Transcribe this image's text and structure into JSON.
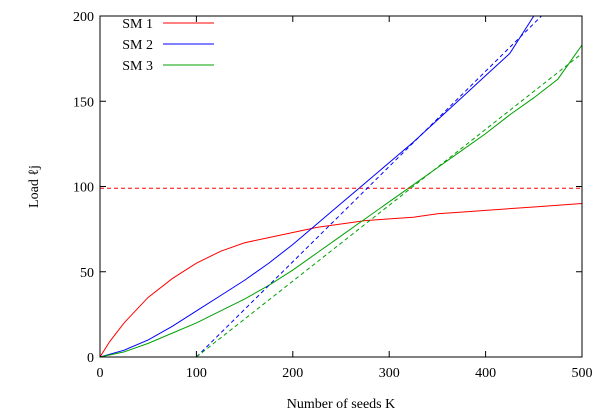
{
  "chart_data": {
    "type": "line",
    "xlabel": "Number of seeds K",
    "ylabel": "Load ℓj",
    "xlim": [
      0,
      500
    ],
    "ylim": [
      0,
      200
    ],
    "xticks": [
      0,
      100,
      200,
      300,
      400,
      500
    ],
    "yticks": [
      0,
      50,
      100,
      150,
      200
    ],
    "grid": false,
    "legend_position": "top-left",
    "series": [
      {
        "name": "SM 1",
        "color": "#ff0000",
        "style": "solid",
        "x": [
          0,
          10,
          25,
          50,
          75,
          100,
          125,
          150,
          175,
          200,
          225,
          250,
          275,
          300,
          325,
          350,
          375,
          400,
          425,
          450,
          475,
          500
        ],
        "y": [
          0,
          9,
          20,
          35,
          46,
          55,
          62,
          67,
          70,
          73,
          76,
          78,
          80,
          81,
          82,
          84,
          85,
          86,
          87,
          88,
          89,
          90
        ]
      },
      {
        "name": "SM 2",
        "color": "#0000ff",
        "style": "solid",
        "x": [
          0,
          25,
          50,
          75,
          100,
          125,
          150,
          175,
          200,
          225,
          250,
          275,
          300,
          325,
          350,
          375,
          400,
          425,
          450
        ],
        "y": [
          0,
          4,
          10,
          18,
          27,
          36,
          45,
          55,
          66,
          78,
          90,
          102,
          114,
          126,
          139,
          152,
          165,
          178,
          200
        ]
      },
      {
        "name": "SM 3",
        "color": "#00a000",
        "style": "solid",
        "x": [
          0,
          25,
          50,
          75,
          100,
          125,
          150,
          175,
          200,
          225,
          250,
          275,
          300,
          325,
          350,
          375,
          400,
          425,
          450,
          475,
          500
        ],
        "y": [
          0,
          3,
          8,
          14,
          20,
          27,
          34,
          42,
          51,
          61,
          71,
          81,
          91,
          101,
          111,
          121,
          131,
          142,
          152,
          163,
          183
        ]
      },
      {
        "name": "",
        "color": "#ff0000",
        "style": "dashed",
        "x": [
          0,
          500
        ],
        "y": [
          99,
          99
        ]
      },
      {
        "name": "",
        "color": "#0000ff",
        "style": "dashed",
        "x": [
          100,
          458
        ],
        "y": [
          0,
          200
        ]
      },
      {
        "name": "",
        "color": "#00a000",
        "style": "dashed",
        "x": [
          100,
          500
        ],
        "y": [
          0,
          178
        ]
      }
    ]
  }
}
